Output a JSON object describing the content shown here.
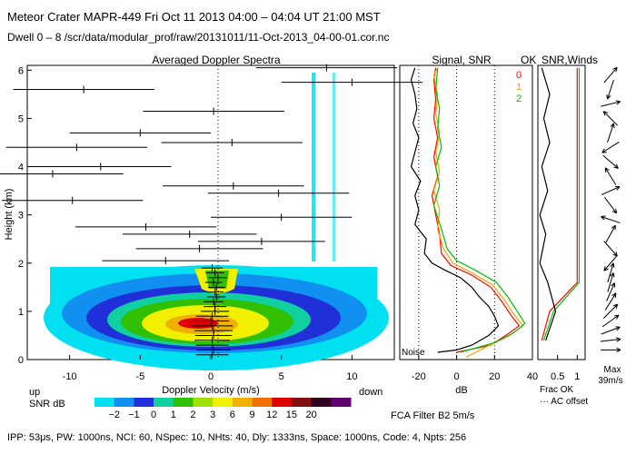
{
  "header": {
    "line1": "Meteor Crater   MAPR-449   Fri Oct 11 2013 04:00 – 04:04 UT 21:00 MST",
    "line2": "Dwell  0 –  8   /scr/data/modular_prof/raw/20131011/11-Oct-2013_04-00-01.cor.nc"
  },
  "chart_data": [
    {
      "type": "heatmap",
      "title": "Averaged Doppler Spectra",
      "xlabel": "Doppler Velocity (m/s)",
      "ylabel": "Height (km)",
      "xlim": [
        -13,
        13
      ],
      "ylim": [
        0,
        6.1
      ],
      "xticks": [
        -10,
        -5,
        0,
        5,
        10
      ],
      "yticks": [
        0,
        1,
        2,
        3,
        4,
        5,
        6
      ],
      "corner_left": "up",
      "corner_right": "down",
      "colorbar": {
        "label": "SNR dB",
        "ticks": [
          "−2",
          "−1",
          "0",
          "1",
          "2",
          "3",
          "6",
          "9",
          "12",
          "15",
          "20"
        ],
        "colors": [
          "#00e0f0",
          "#1090f0",
          "#2030d8",
          "#10d0a0",
          "#30c000",
          "#a0e000",
          "#f0f000",
          "#f0b000",
          "#f07000",
          "#e00000",
          "#801010",
          "#300020",
          "#600070"
        ]
      },
      "moment_markers": [
        {
          "h": 0.1,
          "v": 0.1,
          "w": 2.3
        },
        {
          "h": 0.2,
          "v": 0.2,
          "w": 2.4
        },
        {
          "h": 0.3,
          "v": 0.1,
          "w": 2.3
        },
        {
          "h": 0.4,
          "v": 0.1,
          "w": 2.5
        },
        {
          "h": 0.5,
          "v": 0.2,
          "w": 2.6
        },
        {
          "h": 0.6,
          "v": 0.2,
          "w": 2.7
        },
        {
          "h": 0.7,
          "v": 0.1,
          "w": 2.9
        },
        {
          "h": 0.8,
          "v": 0.0,
          "w": 2.6
        },
        {
          "h": 0.9,
          "v": 0.1,
          "w": 2.3
        },
        {
          "h": 1.0,
          "v": 0.3,
          "w": 2.0
        },
        {
          "h": 1.1,
          "v": 0.3,
          "w": 1.6
        },
        {
          "h": 1.2,
          "v": 0.2,
          "w": 1.4
        },
        {
          "h": 1.3,
          "v": 0.4,
          "w": 1.3
        },
        {
          "h": 1.4,
          "v": 0.3,
          "w": 1.2
        },
        {
          "h": 1.5,
          "v": 0.4,
          "w": 1.2
        },
        {
          "h": 1.6,
          "v": 0.2,
          "w": 1.2
        },
        {
          "h": 1.7,
          "v": 0.5,
          "w": 1.3
        },
        {
          "h": 1.8,
          "v": 0.3,
          "w": 1.3
        },
        {
          "h": 1.9,
          "v": 0.1,
          "w": 1.5
        },
        {
          "h": 2.05,
          "v": -3.2,
          "w": 9.0
        },
        {
          "h": 2.3,
          "v": -0.8,
          "w": 9.0
        },
        {
          "h": 2.45,
          "v": 3.6,
          "w": 9.0
        },
        {
          "h": 2.6,
          "v": -1.5,
          "w": 9.5
        },
        {
          "h": 2.75,
          "v": -4.6,
          "w": 10.0
        },
        {
          "h": 2.95,
          "v": 5.0,
          "w": 10.0
        },
        {
          "h": 3.3,
          "v": -9.8,
          "w": 10.0
        },
        {
          "h": 3.45,
          "v": 4.8,
          "w": 10.0
        },
        {
          "h": 3.6,
          "v": 1.6,
          "w": 10.0
        },
        {
          "h": 3.85,
          "v": -11.2,
          "w": 10.0
        },
        {
          "h": 4.0,
          "v": -7.8,
          "w": 10.0
        },
        {
          "h": 4.4,
          "v": -9.5,
          "w": 10.0
        },
        {
          "h": 4.5,
          "v": 1.5,
          "w": 10.0
        },
        {
          "h": 4.7,
          "v": -5.0,
          "w": 10.0
        },
        {
          "h": 5.15,
          "v": 0.2,
          "w": 10.0
        },
        {
          "h": 5.6,
          "v": -9.0,
          "w": 10.0
        },
        {
          "h": 5.75,
          "v": 10.0,
          "w": 10.0
        },
        {
          "h": 6.05,
          "v": 8.2,
          "w": 10.0
        }
      ]
    },
    {
      "type": "line",
      "title": "Signal, SNR",
      "xlabel": "dB",
      "xlim": [
        -30,
        40
      ],
      "xticks": [
        -20,
        0,
        20,
        40
      ],
      "note": "Noise",
      "legend": {
        "title": "OK",
        "labels": [
          "0",
          "1",
          "2"
        ],
        "colors": [
          "#ff0000",
          "#ffa000",
          "#00c000"
        ]
      },
      "series": [
        {
          "name": "Signal",
          "color": "#000000",
          "values": [
            {
              "h": 0.15,
              "x": -10
            },
            {
              "h": 0.2,
              "x": 0
            },
            {
              "h": 0.3,
              "x": 8
            },
            {
              "h": 0.5,
              "x": 17
            },
            {
              "h": 0.7,
              "x": 22
            },
            {
              "h": 0.9,
              "x": 20
            },
            {
              "h": 1.1,
              "x": 17
            },
            {
              "h": 1.3,
              "x": 12
            },
            {
              "h": 1.5,
              "x": 8
            },
            {
              "h": 1.7,
              "x": 2
            },
            {
              "h": 1.85,
              "x": -6
            },
            {
              "h": 2.0,
              "x": -13
            },
            {
              "h": 2.2,
              "x": -17
            },
            {
              "h": 2.5,
              "x": -16
            },
            {
              "h": 2.8,
              "x": -22
            },
            {
              "h": 3.1,
              "x": -20
            },
            {
              "h": 3.4,
              "x": -22
            },
            {
              "h": 3.7,
              "x": -19
            },
            {
              "h": 4.0,
              "x": -24
            },
            {
              "h": 4.3,
              "x": -22
            },
            {
              "h": 4.6,
              "x": -20
            },
            {
              "h": 4.9,
              "x": -23
            },
            {
              "h": 5.2,
              "x": -21
            },
            {
              "h": 5.5,
              "x": -22
            },
            {
              "h": 5.8,
              "x": -24
            },
            {
              "h": 6.05,
              "x": -22
            }
          ]
        },
        {
          "name": "OK 0",
          "color": "#ff0000",
          "values": [
            {
              "h": 0.15,
              "x": 0
            },
            {
              "h": 0.3,
              "x": 18
            },
            {
              "h": 0.5,
              "x": 26
            },
            {
              "h": 0.7,
              "x": 33
            },
            {
              "h": 0.9,
              "x": 29
            },
            {
              "h": 1.2,
              "x": 24
            },
            {
              "h": 1.5,
              "x": 18
            },
            {
              "h": 1.75,
              "x": 8
            },
            {
              "h": 1.95,
              "x": -3
            },
            {
              "h": 2.2,
              "x": -8
            },
            {
              "h": 2.6,
              "x": -9
            },
            {
              "h": 3.0,
              "x": -11
            },
            {
              "h": 3.4,
              "x": -13
            },
            {
              "h": 3.8,
              "x": -10
            },
            {
              "h": 4.2,
              "x": -12
            },
            {
              "h": 4.6,
              "x": -10
            },
            {
              "h": 5.0,
              "x": -12
            },
            {
              "h": 5.4,
              "x": -11
            },
            {
              "h": 5.8,
              "x": -12
            },
            {
              "h": 6.05,
              "x": -11
            }
          ]
        },
        {
          "name": "OK 1",
          "color": "#ffa000",
          "values": [
            {
              "h": 0.05,
              "x": 5
            },
            {
              "h": 0.25,
              "x": 15
            },
            {
              "h": 0.5,
              "x": 28
            },
            {
              "h": 0.7,
              "x": 35
            },
            {
              "h": 0.95,
              "x": 30
            },
            {
              "h": 1.25,
              "x": 25
            },
            {
              "h": 1.55,
              "x": 19
            },
            {
              "h": 1.8,
              "x": 8
            },
            {
              "h": 2.0,
              "x": -2
            },
            {
              "h": 2.3,
              "x": -7
            },
            {
              "h": 2.7,
              "x": -10
            },
            {
              "h": 3.1,
              "x": -9
            },
            {
              "h": 3.5,
              "x": -12
            },
            {
              "h": 3.9,
              "x": -9
            },
            {
              "h": 4.3,
              "x": -11
            },
            {
              "h": 4.7,
              "x": -9
            },
            {
              "h": 5.1,
              "x": -11
            },
            {
              "h": 5.5,
              "x": -10
            },
            {
              "h": 5.9,
              "x": -12
            },
            {
              "h": 6.05,
              "x": -10
            }
          ]
        },
        {
          "name": "OK 2",
          "color": "#00c000",
          "values": [
            {
              "h": 0.15,
              "x": 2
            },
            {
              "h": 0.35,
              "x": 20
            },
            {
              "h": 0.55,
              "x": 30
            },
            {
              "h": 0.75,
              "x": 36
            },
            {
              "h": 1.0,
              "x": 32
            },
            {
              "h": 1.3,
              "x": 27
            },
            {
              "h": 1.6,
              "x": 21
            },
            {
              "h": 1.85,
              "x": 10
            },
            {
              "h": 2.05,
              "x": 0
            },
            {
              "h": 2.3,
              "x": -5
            },
            {
              "h": 2.7,
              "x": -8
            },
            {
              "h": 3.2,
              "x": -12
            },
            {
              "h": 3.6,
              "x": -9
            },
            {
              "h": 4.0,
              "x": -11
            },
            {
              "h": 4.4,
              "x": -8
            },
            {
              "h": 4.8,
              "x": -10
            },
            {
              "h": 5.2,
              "x": -9
            },
            {
              "h": 5.6,
              "x": -11
            },
            {
              "h": 6.05,
              "x": -10
            }
          ]
        }
      ]
    },
    {
      "type": "line",
      "title": "SNR,Winds",
      "xlabel": "Frac OK",
      "xlim": [
        0,
        1.2
      ],
      "xticks": [
        "0.5",
        "1"
      ],
      "note": "··· AC offset",
      "series": [
        {
          "name": "Frac OK 0",
          "color": "#ff0000",
          "values": [
            {
              "h": 0.4,
              "x": 0.1
            },
            {
              "h": 1.0,
              "x": 0.3
            },
            {
              "h": 1.6,
              "x": 1.0
            },
            {
              "h": 2.0,
              "x": 1.0
            },
            {
              "h": 6.05,
              "x": 1.0
            }
          ]
        },
        {
          "name": "Frac OK 2",
          "color": "#00c000",
          "values": [
            {
              "h": 0.4,
              "x": 0.15
            },
            {
              "h": 1.0,
              "x": 0.4
            },
            {
              "h": 1.6,
              "x": 1.05
            },
            {
              "h": 2.0,
              "x": 1.05
            },
            {
              "h": 6.05,
              "x": 1.05
            }
          ]
        },
        {
          "name": "Frac OK 1",
          "color": "#000000",
          "values": [
            {
              "h": 0.4,
              "x": 0.2
            },
            {
              "h": 1.0,
              "x": 0.45
            },
            {
              "h": 1.6,
              "x": 0.25
            },
            {
              "h": 2.0,
              "x": 0.05
            },
            {
              "h": 2.6,
              "x": 0.2
            },
            {
              "h": 3.0,
              "x": 0.05
            },
            {
              "h": 3.5,
              "x": 0.25
            },
            {
              "h": 4.0,
              "x": 0.1
            },
            {
              "h": 4.5,
              "x": 0.3
            },
            {
              "h": 5.0,
              "x": 0.15
            },
            {
              "h": 5.5,
              "x": 0.3
            },
            {
              "h": 6.05,
              "x": 0.1
            }
          ]
        }
      ]
    },
    {
      "type": "scatter",
      "title": "Winds",
      "xlabel": "Max",
      "scale_label": "39m/s",
      "vectors": [
        {
          "h": 0.2,
          "u": 1.0,
          "v": 0.0
        },
        {
          "h": 0.4,
          "u": 0.9,
          "v": 0.1
        },
        {
          "h": 0.6,
          "u": 0.8,
          "v": 0.3
        },
        {
          "h": 0.8,
          "u": 0.7,
          "v": 0.5
        },
        {
          "h": 1.0,
          "u": 0.6,
          "v": 0.6
        },
        {
          "h": 1.2,
          "u": 0.5,
          "v": 0.8
        },
        {
          "h": 1.4,
          "u": 0.4,
          "v": 0.9
        },
        {
          "h": 1.6,
          "u": 0.3,
          "v": 1.0
        },
        {
          "h": 1.8,
          "u": 0.3,
          "v": 1.0
        },
        {
          "h": 2.0,
          "u": -0.6,
          "v": -0.7
        },
        {
          "h": 2.3,
          "u": 0.8,
          "v": -0.9
        },
        {
          "h": 2.6,
          "u": 0.5,
          "v": 0.9
        },
        {
          "h": 2.9,
          "u": -0.9,
          "v": 0.3
        },
        {
          "h": 3.2,
          "u": 0.6,
          "v": -0.8
        },
        {
          "h": 3.5,
          "u": 0.9,
          "v": 0.4
        },
        {
          "h": 3.8,
          "u": -0.5,
          "v": 0.8
        },
        {
          "h": 4.1,
          "u": 0.7,
          "v": -0.6
        },
        {
          "h": 4.4,
          "u": -0.8,
          "v": -0.5
        },
        {
          "h": 4.7,
          "u": 0.3,
          "v": 0.9
        },
        {
          "h": 5.0,
          "u": -0.6,
          "v": 0.6
        },
        {
          "h": 5.3,
          "u": 0.8,
          "v": 0.2
        },
        {
          "h": 5.6,
          "u": -0.3,
          "v": -0.9
        },
        {
          "h": 5.9,
          "u": 0.6,
          "v": 0.7
        }
      ]
    }
  ],
  "filter_label": "FCA Filter B2   5m/s",
  "footer": "IPP: 53μs,  PW: 1000ns,  NCI: 60,  NSpec: 10,  NHts: 40,  Dly: 1333ns,  Space: 1000ns,  Code: 4,  Npts: 256"
}
